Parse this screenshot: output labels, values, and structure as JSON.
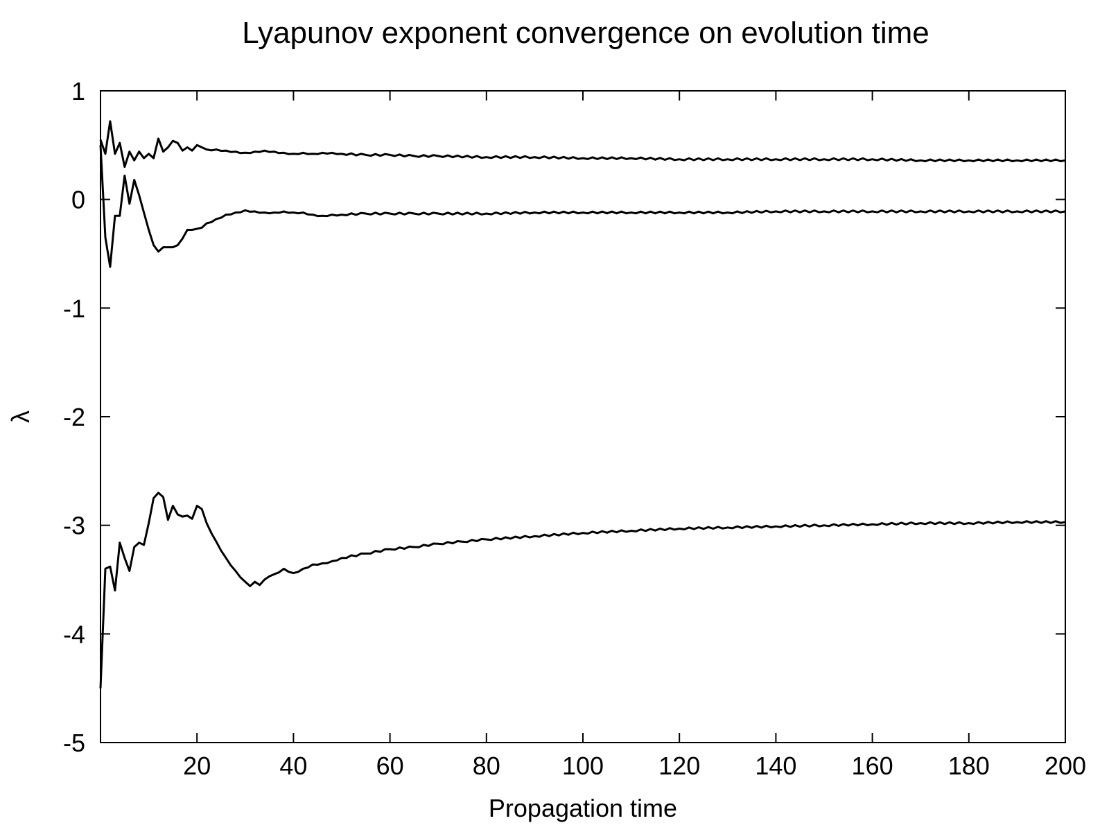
{
  "chart_data": {
    "type": "line",
    "title": "Lyapunov exponent convergence on evolution time",
    "xlabel": "Propagation time",
    "ylabel": "λ",
    "xlim": [
      0,
      200
    ],
    "ylim": [
      -5,
      1
    ],
    "xticks": [
      20,
      40,
      60,
      80,
      100,
      120,
      140,
      160,
      180,
      200
    ],
    "xtick_labels": [
      "20",
      "40",
      "60",
      "80",
      "100",
      "120",
      "140",
      "160",
      "180",
      "200"
    ],
    "yticks": [
      1,
      0,
      -1,
      -2,
      -3,
      -4,
      -5
    ],
    "ytick_labels": [
      "1",
      "0",
      "-1",
      "-2",
      "-3",
      "-4",
      "-5"
    ],
    "grid": false,
    "legend": "none",
    "line_color": "#000000",
    "series": [
      {
        "x": [
          0,
          1,
          2,
          3,
          4,
          5,
          6,
          7,
          8,
          9,
          10,
          11,
          12,
          13,
          14,
          15,
          16,
          17,
          18,
          19,
          20,
          21,
          22,
          24,
          26,
          28,
          30,
          32,
          34,
          36,
          38,
          40,
          42,
          44,
          46,
          48,
          50,
          55,
          60,
          65,
          70,
          80,
          90,
          100,
          110,
          120,
          130,
          140,
          150,
          160,
          170,
          180,
          190,
          200
        ],
        "y": [
          0.55,
          0.42,
          0.72,
          0.42,
          0.52,
          0.3,
          0.44,
          0.36,
          0.44,
          0.38,
          0.42,
          0.38,
          0.56,
          0.44,
          0.48,
          0.54,
          0.52,
          0.45,
          0.48,
          0.45,
          0.5,
          0.48,
          0.46,
          0.46,
          0.45,
          0.44,
          0.43,
          0.44,
          0.45,
          0.44,
          0.43,
          0.42,
          0.43,
          0.42,
          0.43,
          0.43,
          0.42,
          0.41,
          0.41,
          0.4,
          0.4,
          0.39,
          0.39,
          0.38,
          0.38,
          0.37,
          0.37,
          0.37,
          0.37,
          0.37,
          0.36,
          0.36,
          0.36,
          0.36
        ]
      },
      {
        "x": [
          0,
          1,
          2,
          3,
          4,
          5,
          6,
          7,
          8,
          9,
          10,
          11,
          12,
          13,
          14,
          15,
          16,
          17,
          18,
          19,
          20,
          21,
          22,
          24,
          26,
          28,
          30,
          32,
          34,
          36,
          38,
          40,
          42,
          44,
          46,
          48,
          50,
          55,
          60,
          65,
          70,
          80,
          90,
          100,
          110,
          120,
          130,
          140,
          150,
          160,
          170,
          180,
          190,
          200
        ],
        "y": [
          0.5,
          -0.35,
          -0.62,
          -0.15,
          -0.15,
          0.22,
          -0.04,
          0.18,
          0.04,
          -0.12,
          -0.28,
          -0.42,
          -0.48,
          -0.44,
          -0.44,
          -0.44,
          -0.42,
          -0.36,
          -0.28,
          -0.28,
          -0.27,
          -0.26,
          -0.22,
          -0.18,
          -0.14,
          -0.12,
          -0.1,
          -0.11,
          -0.12,
          -0.12,
          -0.11,
          -0.12,
          -0.12,
          -0.14,
          -0.15,
          -0.14,
          -0.14,
          -0.13,
          -0.13,
          -0.13,
          -0.13,
          -0.13,
          -0.12,
          -0.12,
          -0.12,
          -0.12,
          -0.12,
          -0.11,
          -0.11,
          -0.11,
          -0.11,
          -0.11,
          -0.11,
          -0.11
        ]
      },
      {
        "x": [
          0,
          1,
          2,
          3,
          4,
          5,
          6,
          7,
          8,
          9,
          10,
          11,
          12,
          13,
          14,
          15,
          16,
          17,
          18,
          19,
          20,
          21,
          22,
          24,
          26,
          28,
          30,
          31,
          32,
          33,
          34,
          35,
          36,
          38,
          40,
          42,
          44,
          46,
          48,
          50,
          55,
          60,
          65,
          70,
          75,
          80,
          90,
          100,
          110,
          120,
          130,
          140,
          150,
          160,
          170,
          180,
          190,
          200
        ],
        "y": [
          -4.5,
          -3.4,
          -3.38,
          -3.6,
          -3.16,
          -3.3,
          -3.42,
          -3.2,
          -3.16,
          -3.18,
          -2.98,
          -2.75,
          -2.7,
          -2.74,
          -2.95,
          -2.82,
          -2.9,
          -2.92,
          -2.91,
          -2.94,
          -2.82,
          -2.85,
          -2.98,
          -3.15,
          -3.3,
          -3.42,
          -3.52,
          -3.56,
          -3.52,
          -3.55,
          -3.5,
          -3.47,
          -3.45,
          -3.4,
          -3.44,
          -3.4,
          -3.36,
          -3.35,
          -3.33,
          -3.3,
          -3.26,
          -3.22,
          -3.2,
          -3.17,
          -3.15,
          -3.13,
          -3.1,
          -3.07,
          -3.05,
          -3.03,
          -3.02,
          -3.01,
          -3.0,
          -2.99,
          -2.98,
          -2.98,
          -2.97,
          -2.97
        ]
      }
    ]
  }
}
